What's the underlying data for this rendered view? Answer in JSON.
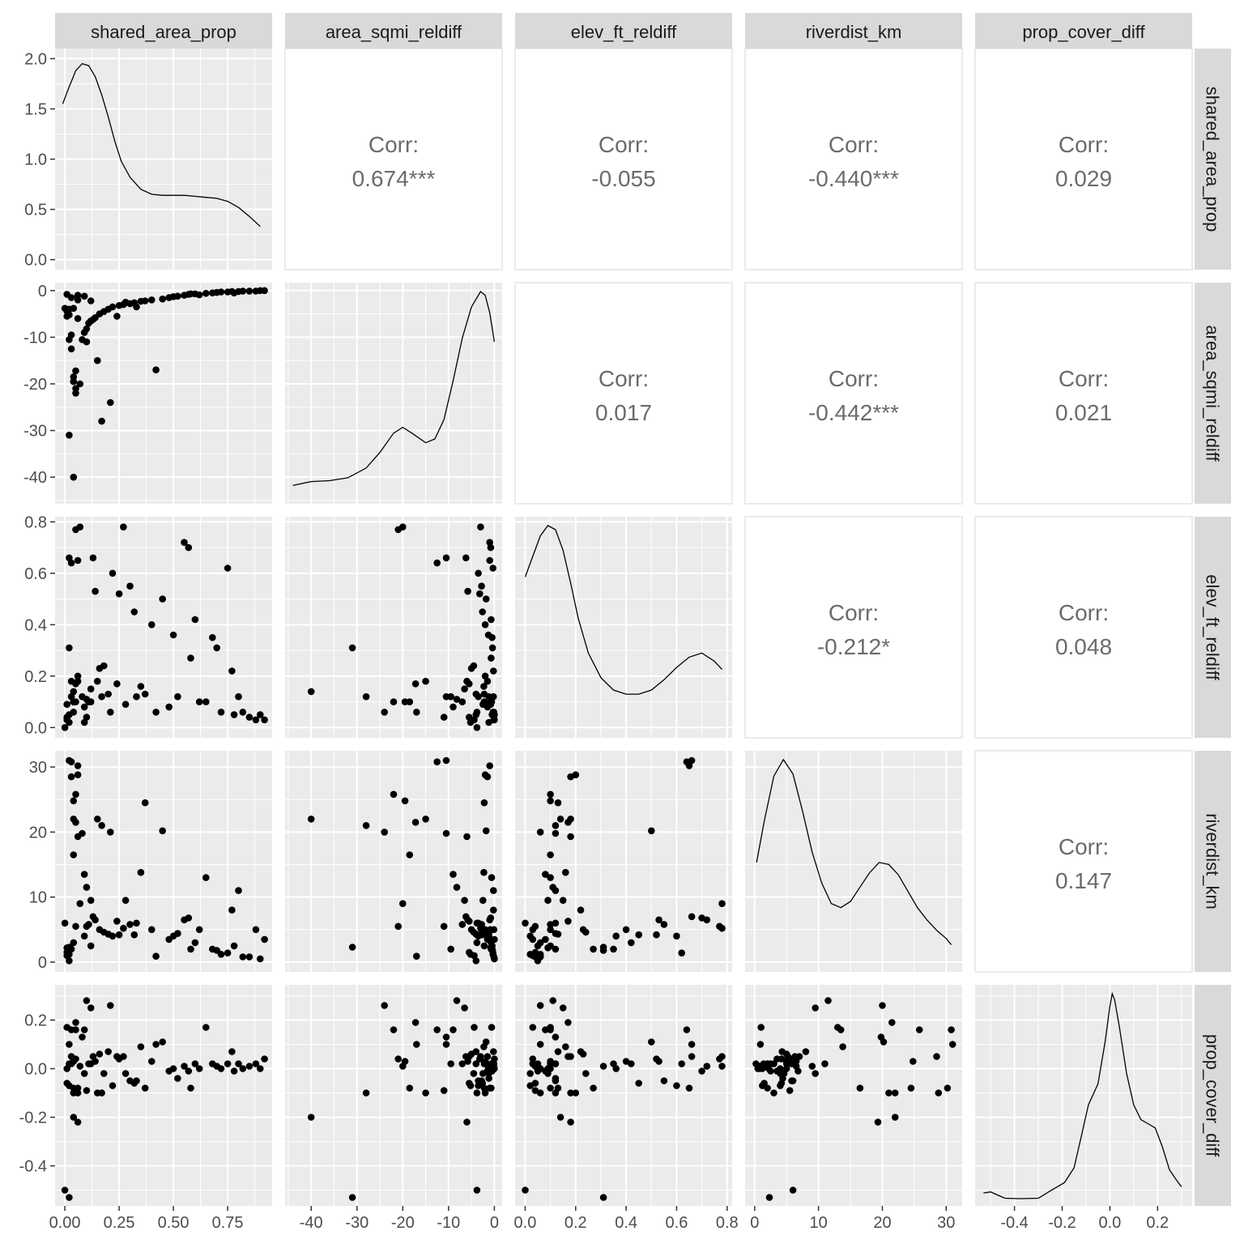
{
  "chart_data": {
    "type": "scatter",
    "variables": [
      "shared_area_prop",
      "area_sqmi_reldiff",
      "elev_ft_reldiff",
      "riverdist_km",
      "prop_cover_diff"
    ],
    "axes": [
      {
        "lim": [
          -0.045,
          0.955
        ],
        "ticks": [
          0.0,
          0.25,
          0.5,
          0.75
        ],
        "labels": [
          "0.00",
          "0.25",
          "0.50",
          "0.75"
        ]
      },
      {
        "lim": [
          -45.7,
          1.7
        ],
        "ticks": [
          -40,
          -30,
          -20,
          -10,
          0
        ],
        "labels": [
          "-40",
          "-30",
          "-20",
          "-10",
          "0"
        ]
      },
      {
        "lim": [
          -0.04,
          0.82
        ],
        "ticks": [
          0.0,
          0.2,
          0.4,
          0.6,
          0.8
        ],
        "labels": [
          "0.0",
          "0.2",
          "0.4",
          "0.6",
          "0.8"
        ]
      },
      {
        "lim": [
          -1.5,
          32.5
        ],
        "ticks": [
          0,
          10,
          20,
          30
        ],
        "labels": [
          "0",
          "10",
          "20",
          "30"
        ]
      },
      {
        "lim": [
          -0.565,
          0.345
        ],
        "ticks": [
          -0.4,
          -0.2,
          0.0,
          0.2
        ],
        "labels": [
          "-0.4",
          "-0.2",
          "0.0",
          "0.2"
        ]
      }
    ],
    "diag_axis": {
      "lim": [
        -0.1,
        2.1
      ],
      "ticks": [
        0.0,
        0.5,
        1.0,
        1.5,
        2.0
      ],
      "labels": [
        "0.0",
        "0.5",
        "1.0",
        "1.5",
        "2.0"
      ]
    },
    "correlations": [
      {
        "row": 0,
        "col": 1,
        "label": "Corr:",
        "value": "0.674***"
      },
      {
        "row": 0,
        "col": 2,
        "label": "Corr:",
        "value": "-0.055"
      },
      {
        "row": 0,
        "col": 3,
        "label": "Corr:",
        "value": "-0.440***"
      },
      {
        "row": 0,
        "col": 4,
        "label": "Corr:",
        "value": "0.029"
      },
      {
        "row": 1,
        "col": 2,
        "label": "Corr:",
        "value": "0.017"
      },
      {
        "row": 1,
        "col": 3,
        "label": "Corr:",
        "value": "-0.442***"
      },
      {
        "row": 1,
        "col": 4,
        "label": "Corr:",
        "value": "0.021"
      },
      {
        "row": 2,
        "col": 3,
        "label": "Corr:",
        "value": "-0.212*"
      },
      {
        "row": 2,
        "col": 4,
        "label": "Corr:",
        "value": "0.048"
      },
      {
        "row": 3,
        "col": 4,
        "label": "Corr:",
        "value": "0.147"
      }
    ],
    "densities": [
      [
        [
          -0.01,
          1.55
        ],
        [
          0.02,
          1.72
        ],
        [
          0.05,
          1.88
        ],
        [
          0.08,
          1.95
        ],
        [
          0.11,
          1.93
        ],
        [
          0.14,
          1.82
        ],
        [
          0.17,
          1.64
        ],
        [
          0.2,
          1.42
        ],
        [
          0.23,
          1.18
        ],
        [
          0.26,
          0.98
        ],
        [
          0.3,
          0.82
        ],
        [
          0.35,
          0.7
        ],
        [
          0.4,
          0.65
        ],
        [
          0.45,
          0.64
        ],
        [
          0.5,
          0.64
        ],
        [
          0.55,
          0.64
        ],
        [
          0.6,
          0.63
        ],
        [
          0.65,
          0.62
        ],
        [
          0.7,
          0.61
        ],
        [
          0.75,
          0.58
        ],
        [
          0.8,
          0.52
        ],
        [
          0.85,
          0.43
        ],
        [
          0.9,
          0.33
        ]
      ],
      [
        [
          -44,
          0.06
        ],
        [
          -40,
          0.08
        ],
        [
          -36,
          0.085
        ],
        [
          -32,
          0.1
        ],
        [
          -28,
          0.15
        ],
        [
          -25,
          0.23
        ],
        [
          -22,
          0.33
        ],
        [
          -20,
          0.36
        ],
        [
          -18,
          0.33
        ],
        [
          -15,
          0.28
        ],
        [
          -13,
          0.3
        ],
        [
          -11,
          0.4
        ],
        [
          -9,
          0.6
        ],
        [
          -7,
          0.82
        ],
        [
          -5,
          0.98
        ],
        [
          -3,
          1.06
        ],
        [
          -2,
          1.04
        ],
        [
          -1,
          0.95
        ],
        [
          0,
          0.8
        ]
      ],
      [
        [
          0,
          0.75
        ],
        [
          0.03,
          0.85
        ],
        [
          0.06,
          0.95
        ],
        [
          0.09,
          1.0
        ],
        [
          0.12,
          0.98
        ],
        [
          0.15,
          0.88
        ],
        [
          0.18,
          0.72
        ],
        [
          0.21,
          0.55
        ],
        [
          0.25,
          0.38
        ],
        [
          0.3,
          0.26
        ],
        [
          0.35,
          0.2
        ],
        [
          0.4,
          0.18
        ],
        [
          0.45,
          0.18
        ],
        [
          0.5,
          0.2
        ],
        [
          0.55,
          0.25
        ],
        [
          0.6,
          0.31
        ],
        [
          0.65,
          0.36
        ],
        [
          0.7,
          0.38
        ],
        [
          0.75,
          0.34
        ],
        [
          0.78,
          0.3
        ]
      ],
      [
        [
          0.3,
          0.5
        ],
        [
          1.5,
          0.7
        ],
        [
          3,
          0.92
        ],
        [
          4.5,
          1.0
        ],
        [
          6,
          0.93
        ],
        [
          7.5,
          0.75
        ],
        [
          9,
          0.55
        ],
        [
          10.5,
          0.4
        ],
        [
          12,
          0.3
        ],
        [
          13.5,
          0.28
        ],
        [
          15,
          0.31
        ],
        [
          16.5,
          0.38
        ],
        [
          18,
          0.45
        ],
        [
          19.5,
          0.5
        ],
        [
          21,
          0.49
        ],
        [
          22.5,
          0.44
        ],
        [
          24,
          0.36
        ],
        [
          25.5,
          0.28
        ],
        [
          27,
          0.22
        ],
        [
          28.5,
          0.17
        ],
        [
          30,
          0.13
        ],
        [
          30.8,
          0.1
        ]
      ],
      [
        [
          -0.53,
          0.03
        ],
        [
          -0.5,
          0.035
        ],
        [
          -0.47,
          0.02
        ],
        [
          -0.44,
          0.005
        ],
        [
          -0.38,
          0.003
        ],
        [
          -0.3,
          0.005
        ],
        [
          -0.25,
          0.04
        ],
        [
          -0.22,
          0.06
        ],
        [
          -0.19,
          0.08
        ],
        [
          -0.15,
          0.15
        ],
        [
          -0.12,
          0.3
        ],
        [
          -0.09,
          0.45
        ],
        [
          -0.05,
          0.55
        ],
        [
          -0.02,
          0.75
        ],
        [
          0.0,
          0.92
        ],
        [
          0.01,
          0.98
        ],
        [
          0.02,
          0.95
        ],
        [
          0.04,
          0.82
        ],
        [
          0.07,
          0.6
        ],
        [
          0.1,
          0.45
        ],
        [
          0.13,
          0.38
        ],
        [
          0.16,
          0.36
        ],
        [
          0.19,
          0.34
        ],
        [
          0.22,
          0.25
        ],
        [
          0.25,
          0.14
        ],
        [
          0.28,
          0.09
        ],
        [
          0.3,
          0.06
        ]
      ]
    ],
    "points": [
      [
        0.01,
        -5.5,
        0.04,
        1.5,
        -0.06
      ],
      [
        0.02,
        -5.2,
        0.02,
        1.2,
        -0.07
      ],
      [
        0.01,
        -4.4,
        0.03,
        1.0,
        0.17
      ],
      [
        0.04,
        -3.8,
        0.06,
        3.0,
        -0.1
      ],
      [
        0.03,
        -12.5,
        0.64,
        30.8,
        0.16
      ],
      [
        0.02,
        -10.5,
        0.66,
        31.0,
        0.1
      ],
      [
        0.06,
        -1.0,
        0.65,
        30.2,
        -0.08
      ],
      [
        0.03,
        -9.5,
        0.12,
        2.0,
        0.02
      ],
      [
        0.02,
        -4.0,
        0.05,
        0.2,
        0.02
      ],
      [
        0.04,
        -40,
        0.14,
        22,
        -0.2
      ],
      [
        0.05,
        -22,
        0.1,
        25.8,
        0.16
      ],
      [
        0.04,
        -19.5,
        0.1,
        24.8,
        0.03
      ],
      [
        0.05,
        -17.2,
        0.17,
        21.5,
        0.19
      ],
      [
        0.08,
        -10.5,
        0.12,
        19.8,
        0.13
      ],
      [
        0.06,
        -6,
        0.18,
        19.3,
        -0.22
      ],
      [
        0.04,
        -18.5,
        0.1,
        16.5,
        -0.08
      ],
      [
        0.09,
        -9.0,
        0.08,
        13.5,
        0.16
      ],
      [
        0.1,
        -8.2,
        0.11,
        11.5,
        0.28
      ],
      [
        0.12,
        -6.5,
        0.15,
        9.5,
        0.25
      ],
      [
        0.1,
        -11,
        0.04,
        5.5,
        -0.09
      ],
      [
        0.11,
        -7.0,
        0.1,
        5.8,
        0.02
      ],
      [
        0.13,
        -6.2,
        0.66,
        7.0,
        0.05
      ],
      [
        0.14,
        -5.8,
        0.53,
        6.5,
        0.03
      ],
      [
        0.16,
        -5.0,
        0.23,
        5.0,
        0.06
      ],
      [
        0.18,
        -4.5,
        0.24,
        4.6,
        -0.02
      ],
      [
        0.2,
        -4.0,
        0.13,
        4.3,
        0.07
      ],
      [
        0.22,
        -3.5,
        0.6,
        4.0,
        -0.07
      ],
      [
        0.25,
        -3.2,
        0.52,
        4.2,
        0.04
      ],
      [
        0.27,
        -3.0,
        0.78,
        5.2,
        0.05
      ],
      [
        0.3,
        -2.8,
        0.55,
        5.8,
        -0.05
      ],
      [
        0.32,
        -2.6,
        0.45,
        4.2,
        -0.06
      ],
      [
        0.35,
        -2.3,
        0.16,
        13.8,
        0.09
      ],
      [
        0.37,
        -2.2,
        0.13,
        24.5,
        -0.08
      ],
      [
        0.4,
        -2.0,
        0.4,
        5.0,
        0.03
      ],
      [
        0.45,
        -1.8,
        0.5,
        20.2,
        0.11
      ],
      [
        0.48,
        -1.5,
        0.08,
        3.5,
        -0.01
      ],
      [
        0.5,
        -1.3,
        0.36,
        4.0,
        0.0
      ],
      [
        0.55,
        -1.0,
        0.72,
        6.5,
        0.01
      ],
      [
        0.57,
        -0.8,
        0.7,
        6.8,
        -0.01
      ],
      [
        0.58,
        -0.7,
        0.27,
        2.0,
        -0.08
      ],
      [
        0.6,
        -0.7,
        0.42,
        3.0,
        0.02
      ],
      [
        0.65,
        -0.6,
        0.1,
        13,
        0.17
      ],
      [
        0.68,
        -0.5,
        0.35,
        2.0,
        0.02
      ],
      [
        0.7,
        -0.4,
        0.31,
        1.8,
        0.01
      ],
      [
        0.72,
        -0.3,
        0.06,
        1.2,
        0.0
      ],
      [
        0.75,
        -0.3,
        0.62,
        1.4,
        0.02
      ],
      [
        0.77,
        -0.2,
        0.22,
        8.0,
        0.07
      ],
      [
        0.8,
        -0.2,
        0.12,
        11,
        0.02
      ],
      [
        0.82,
        -0.1,
        0.06,
        0.8,
        0.0
      ],
      [
        0.85,
        -0.1,
        0.04,
        0.8,
        0.01
      ],
      [
        0.88,
        -0.1,
        0.03,
        5.0,
        0.02
      ],
      [
        0.9,
        0.0,
        0.05,
        0.5,
        0.0
      ],
      [
        0.92,
        0.0,
        0.03,
        3.5,
        0.04
      ],
      [
        0.0,
        -3.8,
        0.0,
        6.0,
        -0.5
      ],
      [
        0.02,
        -31,
        0.31,
        2.3,
        -0.53
      ],
      [
        0.05,
        -21,
        0.77,
        5.5,
        0.04
      ],
      [
        0.07,
        -20,
        0.78,
        9.0,
        0.01
      ],
      [
        0.15,
        -15,
        0.18,
        22,
        -0.1
      ],
      [
        0.24,
        -5.5,
        0.17,
        6.3,
        0.05
      ],
      [
        0.33,
        -3.5,
        0.12,
        6.0,
        -0.05
      ],
      [
        0.28,
        -2.5,
        0.09,
        9.5,
        -0.02
      ],
      [
        0.52,
        -1.2,
        0.12,
        4.4,
        -0.04
      ],
      [
        0.62,
        -0.9,
        0.1,
        5.0,
        0.0
      ],
      [
        0.78,
        -0.5,
        0.05,
        2.5,
        -0.01
      ],
      [
        0.01,
        -0.8,
        0.09,
        2.2,
        0.0
      ],
      [
        0.03,
        -1.5,
        0.18,
        28.5,
        0.05
      ],
      [
        0.06,
        -2.0,
        0.2,
        28.8,
        -0.1
      ],
      [
        0.09,
        -1.2,
        0.02,
        4.0,
        -0.02
      ],
      [
        0.12,
        -2.2,
        0.1,
        2.5,
        0.02
      ],
      [
        0.17,
        -28,
        0.12,
        21,
        -0.1
      ],
      [
        0.21,
        -24,
        0.06,
        20,
        0.26
      ],
      [
        0.42,
        -17,
        0.06,
        0.9,
        0.1
      ]
    ]
  }
}
